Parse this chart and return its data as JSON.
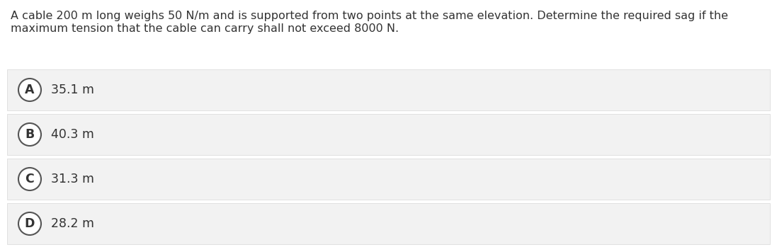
{
  "question_line1": "A cable 200 m long weighs 50 N/m and is supported from two points at the same elevation. Determine the required sag if the",
  "question_line2": "maximum tension that the cable can carry shall not exceed 8000 N.",
  "options": [
    {
      "label": "A",
      "text": "35.1 m"
    },
    {
      "label": "B",
      "text": "40.3 m"
    },
    {
      "label": "C",
      "text": "31.3 m"
    },
    {
      "label": "D",
      "text": "28.2 m"
    }
  ],
  "bg_color": "#ffffff",
  "option_bg_color": "#f2f2f2",
  "option_border_color": "#d8d8d8",
  "text_color": "#333333",
  "circle_edge_color": "#555555",
  "circle_face_color": "#ffffff",
  "question_fontsize": 11.5,
  "option_fontsize": 12.5,
  "label_fontsize": 12.5,
  "fig_width": 10.97,
  "fig_height": 3.56,
  "dpi": 100
}
